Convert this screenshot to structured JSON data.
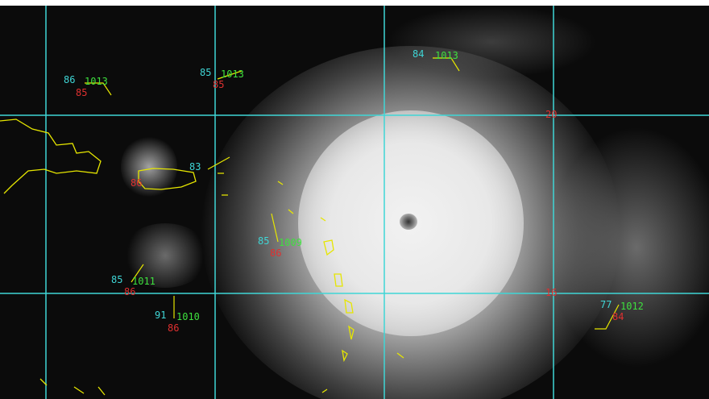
{
  "colors": {
    "grid": "#3fd6d6",
    "coast": "#e6e600",
    "temperature": "#3fd6d6",
    "pressure": "#3ee03e",
    "dewpoint": "#e03030"
  },
  "grid_labels": [
    "20",
    "16"
  ],
  "stations": [
    {
      "temp": "86",
      "pressure": "1013",
      "dewpoint": "85"
    },
    {
      "temp": "85",
      "pressure": "1013",
      "dewpoint": "85"
    },
    {
      "temp": "84",
      "pressure": "1013",
      "dewpoint": ""
    },
    {
      "temp": "83",
      "pressure": "",
      "dewpoint": "86"
    },
    {
      "temp": "85",
      "pressure": "1009",
      "dewpoint": "86"
    },
    {
      "temp": "85",
      "pressure": "1011",
      "dewpoint": "86"
    },
    {
      "temp": "91",
      "pressure": "1010",
      "dewpoint": "86"
    },
    {
      "temp": "77",
      "pressure": "1012",
      "dewpoint": "84"
    }
  ]
}
